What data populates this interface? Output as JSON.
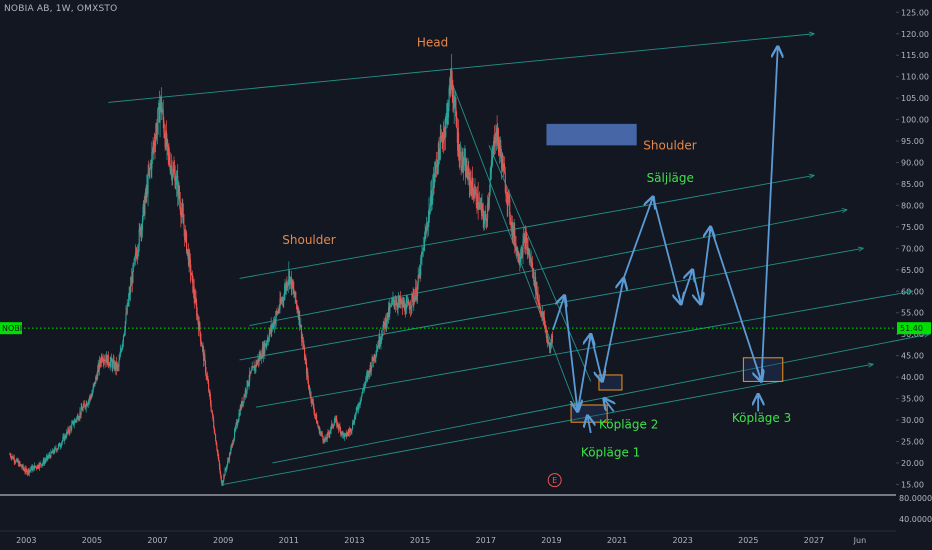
{
  "header": {
    "ticker": "NOBIA AB, 1W, OMXSTO"
  },
  "chart_data": {
    "type": "candlestick",
    "symbol": "NOBIA AB",
    "interval": "1W",
    "exchange": "OMXSTO",
    "x_ticks": [
      "2003",
      "2005",
      "2007",
      "2009",
      "2011",
      "2013",
      "2015",
      "2017",
      "2019",
      "2021",
      "2023",
      "2025",
      "2027",
      "Jun"
    ],
    "y_ticks": [
      "125.00",
      "120.00",
      "115.00",
      "110.00",
      "105.00",
      "100.00",
      "95.00",
      "90.00",
      "85.00",
      "80.00",
      "75.00",
      "70.00",
      "65.00",
      "60.00",
      "55.00",
      "50.00",
      "45.00",
      "40.00",
      "35.00",
      "30.00",
      "25.00",
      "20.00",
      "15.00"
    ],
    "lower_pane_ticks": [
      "80.0000",
      "40.0000"
    ],
    "last_price": {
      "symbol": "NOBI",
      "value": "51.40"
    },
    "price_path": [
      [
        2002.5,
        22
      ],
      [
        2003.0,
        18
      ],
      [
        2003.5,
        20
      ],
      [
        2004.0,
        24
      ],
      [
        2004.5,
        30
      ],
      [
        2005.0,
        36
      ],
      [
        2005.3,
        45
      ],
      [
        2005.8,
        42
      ],
      [
        2006.2,
        62
      ],
      [
        2006.6,
        80
      ],
      [
        2006.9,
        95
      ],
      [
        2007.1,
        104
      ],
      [
        2007.3,
        92
      ],
      [
        2007.6,
        85
      ],
      [
        2007.9,
        70
      ],
      [
        2008.2,
        55
      ],
      [
        2008.5,
        40
      ],
      [
        2008.8,
        24
      ],
      [
        2008.95,
        15
      ],
      [
        2009.2,
        22
      ],
      [
        2009.5,
        32
      ],
      [
        2009.8,
        40
      ],
      [
        2010.2,
        46
      ],
      [
        2010.5,
        52
      ],
      [
        2010.8,
        58
      ],
      [
        2011.0,
        64
      ],
      [
        2011.3,
        55
      ],
      [
        2011.6,
        38
      ],
      [
        2011.9,
        28
      ],
      [
        2012.1,
        25
      ],
      [
        2012.4,
        30
      ],
      [
        2012.7,
        26
      ],
      [
        2012.9,
        28
      ],
      [
        2013.3,
        38
      ],
      [
        2013.6,
        45
      ],
      [
        2013.9,
        52
      ],
      [
        2014.2,
        58
      ],
      [
        2014.6,
        56
      ],
      [
        2014.9,
        60
      ],
      [
        2015.2,
        75
      ],
      [
        2015.5,
        90
      ],
      [
        2015.8,
        100
      ],
      [
        2015.95,
        110
      ],
      [
        2016.2,
        92
      ],
      [
        2016.5,
        86
      ],
      [
        2016.8,
        80
      ],
      [
        2017.0,
        76
      ],
      [
        2017.3,
        98
      ],
      [
        2017.5,
        90
      ],
      [
        2017.8,
        75
      ],
      [
        2018.0,
        68
      ],
      [
        2018.2,
        72
      ],
      [
        2018.4,
        66
      ],
      [
        2018.6,
        58
      ],
      [
        2018.8,
        52
      ],
      [
        2018.95,
        46
      ],
      [
        2019.05,
        51.4
      ]
    ],
    "projection_path": [
      [
        2019.05,
        51
      ],
      [
        2019.4,
        59
      ],
      [
        2019.8,
        32
      ],
      [
        2020.2,
        50
      ],
      [
        2020.55,
        39
      ],
      [
        2021.2,
        63
      ],
      [
        2022.1,
        82
      ],
      [
        2022.95,
        57
      ],
      [
        2023.3,
        65
      ],
      [
        2023.55,
        57
      ],
      [
        2023.85,
        75
      ],
      [
        2025.4,
        39
      ],
      [
        2025.9,
        117
      ]
    ],
    "extra_arrows": [
      [
        [
          2020.2,
          27
        ],
        [
          2020.1,
          31
        ]
      ],
      [
        [
          2020.9,
          32
        ],
        [
          2020.6,
          35
        ]
      ],
      [
        [
          2025.3,
          32
        ],
        [
          2025.3,
          36
        ]
      ]
    ],
    "trendlines": [
      {
        "from": [
          2005.5,
          104
        ],
        "to": [
          2027.0,
          120
        ]
      },
      {
        "from": [
          2009.5,
          63
        ],
        "to": [
          2027.0,
          87
        ]
      },
      {
        "from": [
          2009.8,
          52
        ],
        "to": [
          2028.0,
          79
        ]
      },
      {
        "from": [
          2009.5,
          44
        ],
        "to": [
          2028.5,
          70
        ]
      },
      {
        "from": [
          2010.0,
          33
        ],
        "to": [
          2030.0,
          60
        ]
      },
      {
        "from": [
          2010.5,
          20
        ],
        "to": [
          2030.5,
          50
        ]
      },
      {
        "from": [
          2009.0,
          15
        ],
        "to": [
          2028.8,
          43
        ]
      },
      {
        "from": [
          2015.9,
          110
        ],
        "to": [
          2019.8,
          32
        ]
      },
      {
        "from": [
          2017.1,
          94
        ],
        "to": [
          2020.2,
          39
        ]
      }
    ],
    "zones": [
      {
        "x0": 2019.6,
        "x1": 2020.7,
        "y0": 29.5,
        "y1": 33.5,
        "style": "orange-box"
      },
      {
        "x0": 2020.45,
        "x1": 2021.15,
        "y0": 37,
        "y1": 40.5,
        "style": "orange-box"
      },
      {
        "x0": 2024.85,
        "x1": 2026.05,
        "y0": 39,
        "y1": 44.5,
        "style": "orange-box"
      },
      {
        "x0": 2018.85,
        "x1": 2021.6,
        "y0": 94,
        "y1": 99,
        "style": "blue-box"
      }
    ],
    "annotations": [
      {
        "text": "Head",
        "x": 2014.9,
        "y": 117,
        "color": "orange"
      },
      {
        "text": "Shoulder",
        "x": 2010.8,
        "y": 71,
        "color": "orange"
      },
      {
        "text": "Shoulder",
        "x": 2021.8,
        "y": 93,
        "color": "orange"
      },
      {
        "text": "Säljläge",
        "x": 2021.9,
        "y": 85.5,
        "color": "green"
      },
      {
        "text": "Köpläge 1",
        "x": 2019.9,
        "y": 21.5,
        "color": "green"
      },
      {
        "text": "Köpläge 2",
        "x": 2020.45,
        "y": 28,
        "color": "green"
      },
      {
        "text": "Köpläge 3",
        "x": 2024.5,
        "y": 29.5,
        "color": "green"
      }
    ],
    "event_marker": {
      "text": "E",
      "x": 2019.1,
      "y": 16
    },
    "colors": {
      "background": "#131722",
      "up": "#26a69a",
      "down": "#ef5350",
      "trendline": "#26a69a",
      "projection": "#5b9bd5",
      "zone_border": "#f7931a",
      "last_price": "#00e000"
    },
    "xlim": [
      2002.2,
      2029.5
    ],
    "ylim": [
      13,
      126
    ]
  }
}
